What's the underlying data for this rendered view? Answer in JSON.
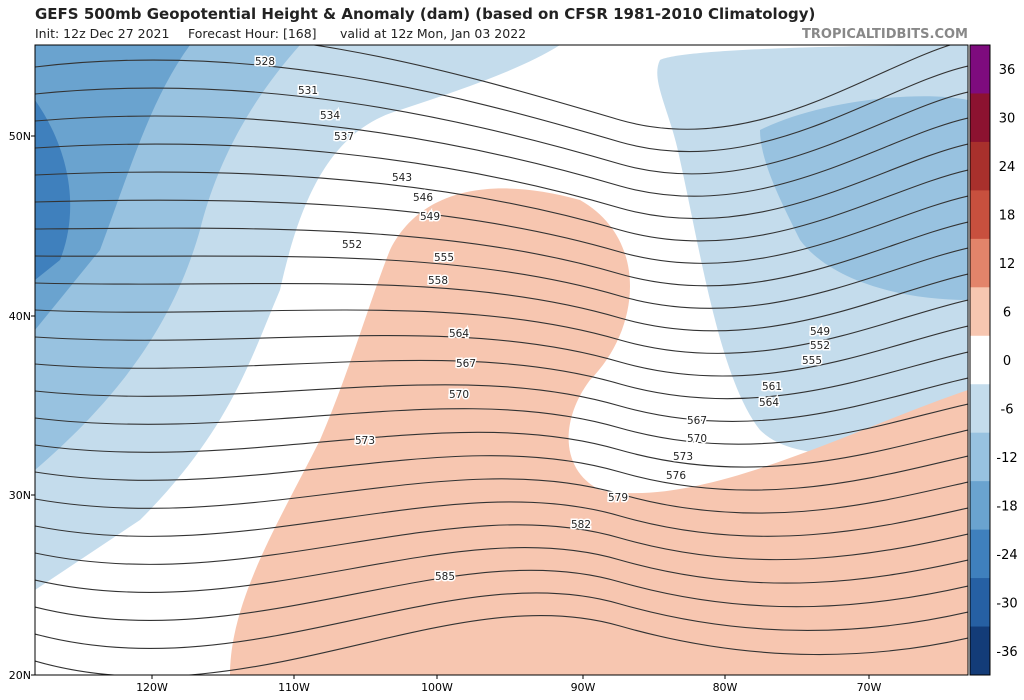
{
  "header": {
    "title": "GEFS 500mb Geopotential Height & Anomaly (dam) (based on CFSR 1981-2010 Climatology)",
    "init": "Init: 12z Dec 27 2021",
    "forecast_hour": "Forecast Hour: [168]",
    "valid": "valid at 12z Mon, Jan 03 2022",
    "site": "TROPICALTIDBITS.COM"
  },
  "map": {
    "lat_labels": [
      "50N",
      "40N",
      "30N",
      "20N"
    ],
    "lon_labels": [
      "120W",
      "110W",
      "100W",
      "90W",
      "80W",
      "70W"
    ],
    "contour_labels": [
      "528",
      "531",
      "534",
      "537",
      "543",
      "546",
      "549",
      "552",
      "555",
      "558",
      "564",
      "567",
      "570",
      "573",
      "549",
      "552",
      "555",
      "561",
      "564",
      "567",
      "570",
      "573",
      "576",
      "579",
      "582",
      "585"
    ]
  },
  "colorbar": {
    "ticks": [
      "36",
      "30",
      "24",
      "18",
      "12",
      "6",
      "0",
      "-6",
      "-12",
      "-18",
      "-24",
      "-30",
      "-36"
    ],
    "colors": [
      "#7e0b7e",
      "#8c1230",
      "#a8302c",
      "#c8503e",
      "#e3846a",
      "#f7c6b0",
      "#ffffff",
      "#c4dcec",
      "#98c2e0",
      "#6aa3cf",
      "#3f80bd",
      "#2660a3",
      "#133c78"
    ]
  }
}
